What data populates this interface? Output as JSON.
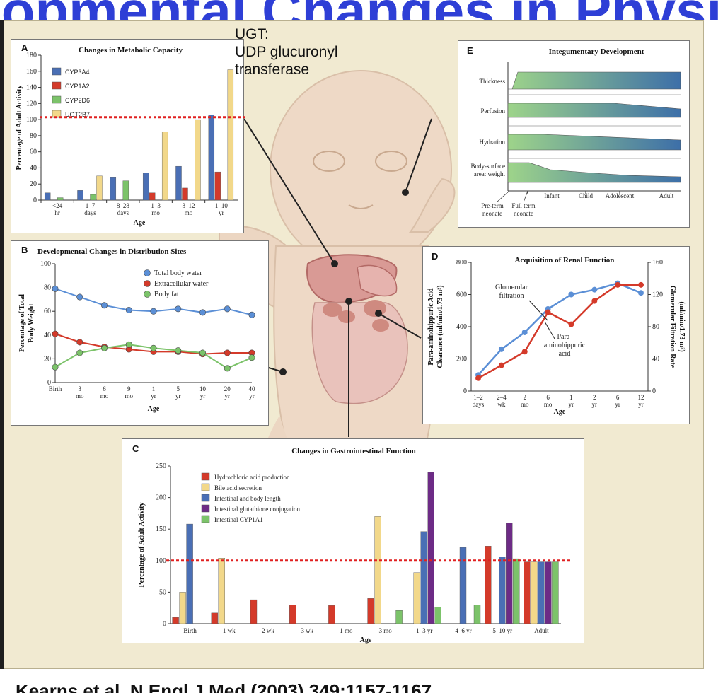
{
  "page": {
    "title": "Developmental Changes in Physiology",
    "citation": "Kearns et al. N Engl J Med (2003) 349:1157-1167",
    "ugt_note": [
      "UGT:",
      "UDP glucuronyl",
      "transferase"
    ],
    "colors": {
      "title_blue": "#2e3fd6",
      "background": "#f1ead1",
      "reference_line": "#e02020"
    }
  },
  "chart_data": [
    {
      "panel": "A",
      "type": "bar",
      "title": "Changes in Metabolic Capacity",
      "xlabel": "Age",
      "ylabel": "Percentage of Adult Activity",
      "ylim": [
        0,
        180
      ],
      "yticks": [
        "0",
        "20",
        "40",
        "60",
        "80",
        "100",
        "120",
        "140",
        "160",
        "180"
      ],
      "categories": [
        [
          "<24",
          "hr"
        ],
        [
          "1–7",
          "days"
        ],
        [
          "8–28",
          "days"
        ],
        [
          "1–3",
          "mo"
        ],
        [
          "3–12",
          "mo"
        ],
        [
          "1–10",
          "yr"
        ]
      ],
      "reference_line": 103,
      "series": [
        {
          "name": "CYP3A4",
          "color": "#4a6fb5",
          "values": [
            9,
            12,
            28,
            34,
            42,
            106
          ]
        },
        {
          "name": "CYP1A2",
          "color": "#d43a2a",
          "values": [
            0,
            0,
            0,
            9,
            15,
            35
          ]
        },
        {
          "name": "CYP2D6",
          "color": "#7cc36a",
          "values": [
            3,
            7,
            24,
            0,
            0,
            0
          ]
        },
        {
          "name": "UGT2B7",
          "color": "#f2d88a",
          "values": [
            0,
            30,
            0,
            85,
            100,
            162
          ]
        }
      ]
    },
    {
      "panel": "B",
      "type": "line",
      "title": "Developmental Changes in Distribution Sites",
      "xlabel": "Age",
      "ylabel": [
        "Percentage of Total",
        "Body Weight"
      ],
      "ylim": [
        0,
        100
      ],
      "yticks": [
        "0",
        "20",
        "40",
        "60",
        "80",
        "100"
      ],
      "categories": [
        [
          "Birth",
          ""
        ],
        [
          "3",
          "mo"
        ],
        [
          "6",
          "mo"
        ],
        [
          "9",
          "mo"
        ],
        [
          "1",
          "yr"
        ],
        [
          "5",
          "yr"
        ],
        [
          "10",
          "yr"
        ],
        [
          "20",
          "yr"
        ],
        [
          "40",
          "yr"
        ]
      ],
      "series": [
        {
          "name": "Total body water",
          "color": "#5b8fd6",
          "values": [
            79,
            72,
            65,
            61,
            60,
            62,
            59,
            62,
            57
          ]
        },
        {
          "name": "Extracellular water",
          "color": "#d43a2a",
          "values": [
            41,
            34,
            30,
            28,
            26,
            26,
            24,
            25,
            25
          ]
        },
        {
          "name": "Body fat",
          "color": "#7cc36a",
          "values": [
            13,
            25,
            29,
            32,
            29,
            27,
            25,
            12,
            21
          ]
        }
      ]
    },
    {
      "panel": "C",
      "type": "bar",
      "title": "Changes in Gastrointestinal Function",
      "xlabel": "Age",
      "ylabel": "Percentage of Adult Activity",
      "ylim": [
        0,
        250
      ],
      "yticks": [
        "0",
        "50",
        "100",
        "150",
        "200",
        "250"
      ],
      "categories": [
        "Birth",
        "1 wk",
        "2 wk",
        "3 wk",
        "1 mo",
        "3 mo",
        "1–3 yr",
        "4–6 yr",
        "5–10 yr",
        "Adult"
      ],
      "reference_line": 100,
      "series": [
        {
          "name": "Hydrochloric acid production",
          "color": "#d43a2a",
          "values": [
            10,
            17,
            38,
            30,
            29,
            40,
            0,
            0,
            123,
            98
          ]
        },
        {
          "name": "Bile acid secretion",
          "color": "#f2d88a",
          "values": [
            50,
            104,
            0,
            0,
            0,
            170,
            81,
            0,
            0,
            98
          ]
        },
        {
          "name": "Intestinal and body length",
          "color": "#4a6fb5",
          "values": [
            158,
            0,
            0,
            0,
            0,
            0,
            146,
            121,
            106,
            98
          ]
        },
        {
          "name": "Intestinal glutathione conjugation",
          "color": "#6d2b86",
          "values": [
            0,
            0,
            0,
            0,
            0,
            0,
            240,
            0,
            160,
            98
          ]
        },
        {
          "name": "Intestinal CYP1A1",
          "color": "#7cc36a",
          "values": [
            0,
            0,
            0,
            0,
            0,
            21,
            26,
            30,
            103,
            98
          ]
        }
      ]
    },
    {
      "panel": "D",
      "type": "line",
      "title": "Acquisition of Renal Function",
      "xlabel": "Age",
      "ylabel": [
        "Para-aminohippuric Acid",
        "Clearance (ml/min/1.73 m²)"
      ],
      "ylabel_right": [
        "Glomerular Filtration Rate",
        "(ml/min/1.73 m²)"
      ],
      "ylim": [
        0,
        800
      ],
      "ylim_right": [
        0,
        160
      ],
      "yticks": [
        "0",
        "200",
        "400",
        "600",
        "800"
      ],
      "yticks_right": [
        "0",
        "40",
        "80",
        "120",
        "160"
      ],
      "categories": [
        [
          "1–2",
          "days"
        ],
        [
          "2–4",
          "wk"
        ],
        [
          "2",
          "mo"
        ],
        [
          "6",
          "mo"
        ],
        [
          "1",
          "yr"
        ],
        [
          "2",
          "yr"
        ],
        [
          "6",
          "yr"
        ],
        [
          "12",
          "yr"
        ]
      ],
      "annotations": [
        {
          "lines": [
            "Glomerular",
            "filtration"
          ]
        },
        {
          "lines": [
            "Para-",
            "aminohippuric",
            "acid"
          ]
        }
      ],
      "series": [
        {
          "name": "Glomerular filtration",
          "color": "#5b8fd6",
          "axis": "right",
          "values": [
            20,
            52,
            73,
            102,
            120,
            126,
            134,
            122
          ]
        },
        {
          "name": "Para-aminohippuric acid",
          "color": "#d43a2a",
          "axis": "left",
          "values": [
            80,
            160,
            245,
            490,
            415,
            560,
            660,
            660
          ]
        }
      ]
    },
    {
      "panel": "E",
      "type": "area",
      "title": "Integumentary Development",
      "rows": [
        "Thickness",
        "Perfusion",
        "Hydration",
        "Body-surface",
        "area: weight"
      ],
      "x_stage_labels": [
        {
          "lines": [
            "Pre-term",
            "neonate"
          ]
        },
        {
          "lines": [
            "Full term",
            "neonate"
          ]
        },
        {
          "lines": [
            "Infant"
          ]
        },
        {
          "lines": [
            "Child"
          ]
        },
        {
          "lines": [
            "Adolescent"
          ]
        },
        {
          "lines": [
            "Adult"
          ]
        }
      ]
    }
  ]
}
